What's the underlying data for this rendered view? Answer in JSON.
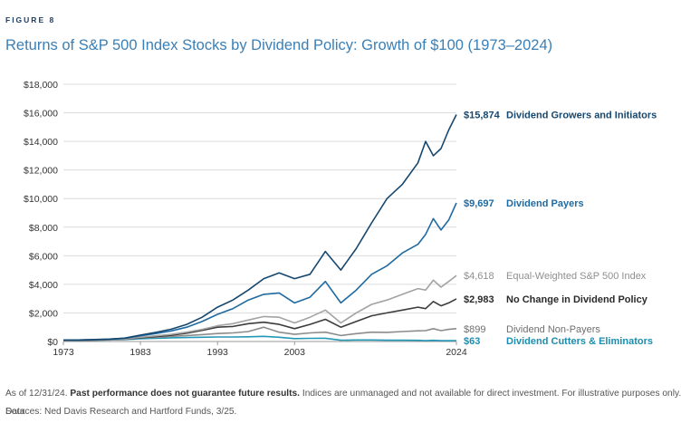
{
  "figure_label": "FIGURE 8",
  "notes": {
    "as_of": "As of 12/31/24.",
    "disclaimer_bold": "Past performance does not guarantee future results.",
    "disclaimer_rest": "Indices are unmanaged and not available for direct investment. For illustrative purposes only. Data",
    "sources": "Sources: Ned Davis Research and Hartford Funds, 3/25."
  },
  "chart_data": {
    "type": "line",
    "title": "Returns of S&P 500 Index Stocks by Dividend Policy: Growth of $100 (1973–2024)",
    "xlabel": "",
    "ylabel": "",
    "xlim": [
      1973,
      2024
    ],
    "ylim": [
      0,
      18000
    ],
    "x_ticks": [
      1973,
      1983,
      1993,
      2003,
      2024
    ],
    "x_tick_labels": [
      "1973",
      "1983",
      "1993",
      "2003",
      "2024"
    ],
    "y_ticks": [
      0,
      2000,
      4000,
      6000,
      8000,
      10000,
      12000,
      14000,
      16000,
      18000
    ],
    "y_tick_labels": [
      "$0",
      "$2,000",
      "$4,000",
      "$6,000",
      "$8,000",
      "$10,000",
      "$12,000",
      "$14,000",
      "$16,000",
      "$18,000"
    ],
    "grid": "horizontal",
    "legend": "end-labels-right",
    "series": [
      {
        "name": "Dividend Growers and Initiators",
        "end_label": "$15,874",
        "color": "#16476f",
        "label_color": "#16476f",
        "x": [
          1973,
          1975,
          1977,
          1979,
          1981,
          1983,
          1985,
          1987,
          1989,
          1991,
          1993,
          1995,
          1997,
          1999,
          2001,
          2003,
          2005,
          2007,
          2009,
          2011,
          2013,
          2015,
          2017,
          2019,
          2020,
          2021,
          2022,
          2023,
          2024
        ],
        "y": [
          100,
          110,
          140,
          170,
          240,
          450,
          640,
          860,
          1200,
          1700,
          2400,
          2900,
          3600,
          4400,
          4800,
          4400,
          4700,
          6300,
          5000,
          6500,
          8300,
          10000,
          11000,
          12500,
          14000,
          13000,
          13500,
          14800,
          15874
        ]
      },
      {
        "name": "Dividend Payers",
        "end_label": "$9,697",
        "color": "#1f6aa0",
        "label_color": "#1f6aa0",
        "x": [
          1973,
          1975,
          1977,
          1979,
          1981,
          1983,
          1985,
          1987,
          1989,
          1991,
          1993,
          1995,
          1997,
          1999,
          2001,
          2003,
          2005,
          2007,
          2009,
          2011,
          2013,
          2015,
          2017,
          2019,
          2020,
          2021,
          2022,
          2023,
          2024
        ],
        "y": [
          100,
          110,
          130,
          160,
          220,
          400,
          560,
          740,
          1000,
          1400,
          1900,
          2300,
          2900,
          3300,
          3400,
          2700,
          3100,
          4200,
          2700,
          3600,
          4700,
          5300,
          6200,
          6800,
          7500,
          8600,
          7800,
          8500,
          9697
        ]
      },
      {
        "name": "Equal-Weighted S&P 500 Index",
        "end_label": "$4,618",
        "color": "#a3a3a3",
        "label_color": "#8f8f8f",
        "x": [
          1973,
          1975,
          1977,
          1979,
          1981,
          1983,
          1985,
          1987,
          1989,
          1991,
          1993,
          1995,
          1997,
          1999,
          2001,
          2003,
          2005,
          2007,
          2009,
          2011,
          2013,
          2015,
          2017,
          2019,
          2020,
          2021,
          2022,
          2023,
          2024
        ],
        "y": [
          100,
          100,
          120,
          140,
          180,
          300,
          400,
          500,
          650,
          850,
          1100,
          1250,
          1500,
          1750,
          1700,
          1300,
          1700,
          2200,
          1300,
          2000,
          2600,
          2900,
          3300,
          3700,
          3600,
          4300,
          3800,
          4200,
          4618
        ]
      },
      {
        "name": "No Change in Dividend Policy",
        "end_label": "$2,983",
        "color": "#3c3c3c",
        "label_color": "#2a2a2a",
        "x": [
          1973,
          1975,
          1977,
          1979,
          1981,
          1983,
          1985,
          1987,
          1989,
          1991,
          1993,
          1995,
          1997,
          1999,
          2001,
          2003,
          2005,
          2007,
          2009,
          2011,
          2013,
          2015,
          2017,
          2019,
          2020,
          2021,
          2022,
          2023,
          2024
        ],
        "y": [
          100,
          90,
          110,
          130,
          160,
          260,
          340,
          440,
          580,
          780,
          1000,
          1050,
          1250,
          1350,
          1200,
          900,
          1200,
          1550,
          1000,
          1400,
          1800,
          2000,
          2200,
          2400,
          2300,
          2800,
          2500,
          2700,
          2983
        ]
      },
      {
        "name": "Dividend Non-Payers",
        "end_label": "$899",
        "color": "#8c8c8c",
        "label_color": "#6f6f6f",
        "x": [
          1973,
          1975,
          1977,
          1979,
          1981,
          1983,
          1985,
          1987,
          1989,
          1991,
          1993,
          1995,
          1997,
          1999,
          2001,
          2003,
          2005,
          2007,
          2009,
          2011,
          2013,
          2015,
          2017,
          2019,
          2020,
          2021,
          2022,
          2023,
          2024
        ],
        "y": [
          100,
          70,
          90,
          120,
          160,
          260,
          300,
          360,
          420,
          480,
          560,
          600,
          700,
          1000,
          650,
          500,
          600,
          650,
          420,
          550,
          650,
          640,
          700,
          750,
          760,
          900,
          760,
          850,
          899
        ]
      },
      {
        "name": "Dividend Cutters & Eliminators",
        "end_label": "$63",
        "color": "#2398b6",
        "label_color": "#1a8eb0",
        "x": [
          1973,
          1975,
          1977,
          1979,
          1981,
          1983,
          1985,
          1987,
          1989,
          1991,
          1993,
          1995,
          1997,
          1999,
          2001,
          2003,
          2005,
          2007,
          2009,
          2011,
          2013,
          2015,
          2017,
          2019,
          2020,
          2021,
          2022,
          2023,
          2024
        ],
        "y": [
          100,
          70,
          90,
          110,
          140,
          190,
          220,
          260,
          280,
          300,
          320,
          320,
          330,
          360,
          300,
          200,
          220,
          230,
          90,
          110,
          110,
          90,
          90,
          80,
          60,
          80,
          60,
          60,
          63
        ]
      }
    ]
  }
}
